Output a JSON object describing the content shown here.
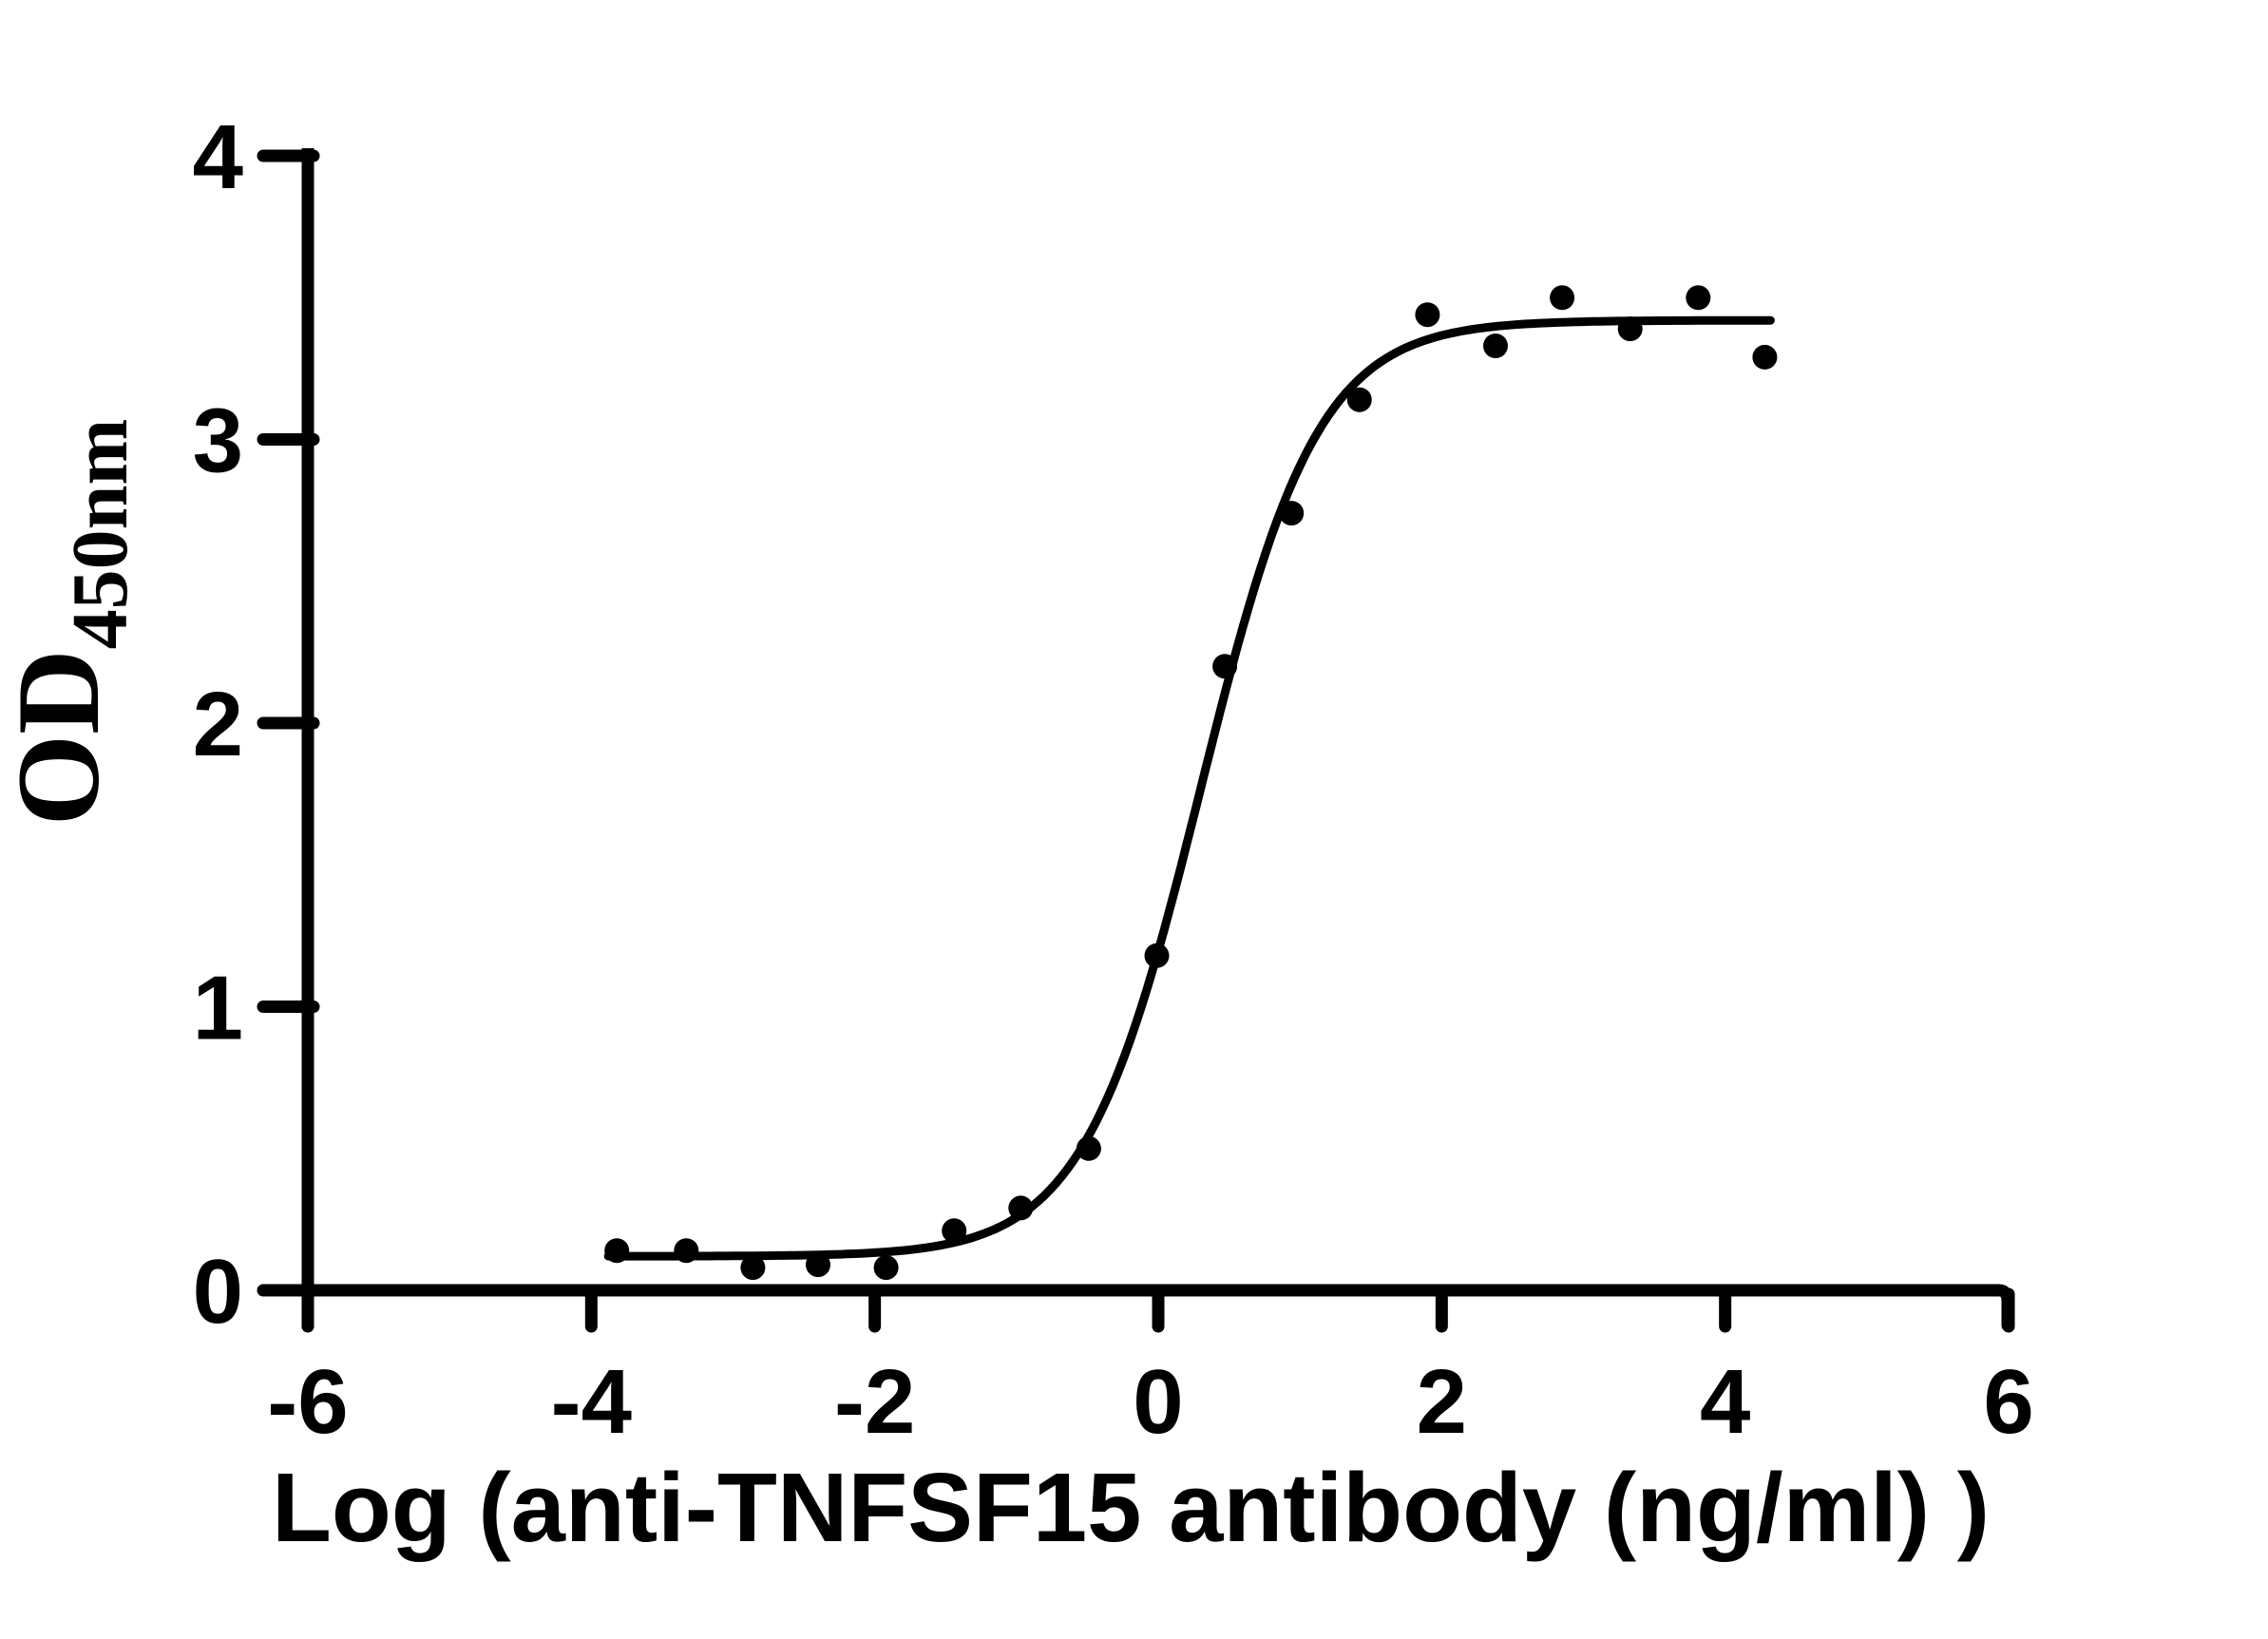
{
  "figure": {
    "background_color": "#ffffff",
    "ink_color": "#000000"
  },
  "chart_data": {
    "type": "scatter",
    "title": "",
    "xlabel": "Log（anti-TNFSF15 antibody（ng/ml） ）",
    "ylabel_base": "OD",
    "ylabel_subscript": "450nm",
    "xlim": [
      -6,
      6
    ],
    "ylim": [
      0,
      4
    ],
    "grid": false,
    "legend": "none",
    "x_tick_labels": [
      "-6",
      "-4",
      "-2",
      "0",
      "2",
      "4",
      "6"
    ],
    "x_tick_values": [
      -6,
      -4,
      -2,
      0,
      2,
      4,
      6
    ],
    "y_tick_labels": [
      "0",
      "1",
      "2",
      "3",
      "4"
    ],
    "y_tick_values": [
      0,
      1,
      2,
      3,
      4
    ],
    "marker": {
      "shape": "filled-circle",
      "color": "#000000",
      "radius_px": 13
    },
    "points": [
      {
        "x": -3.82,
        "y": 0.14
      },
      {
        "x": -3.33,
        "y": 0.14
      },
      {
        "x": -2.86,
        "y": 0.08
      },
      {
        "x": -2.4,
        "y": 0.09
      },
      {
        "x": -1.92,
        "y": 0.08
      },
      {
        "x": -1.44,
        "y": 0.21
      },
      {
        "x": -0.97,
        "y": 0.29
      },
      {
        "x": -0.49,
        "y": 0.5
      },
      {
        "x": -0.01,
        "y": 1.18
      },
      {
        "x": 0.47,
        "y": 2.2
      },
      {
        "x": 0.94,
        "y": 2.74
      },
      {
        "x": 1.42,
        "y": 3.14
      },
      {
        "x": 1.9,
        "y": 3.44
      },
      {
        "x": 2.38,
        "y": 3.33
      },
      {
        "x": 2.85,
        "y": 3.5
      },
      {
        "x": 3.33,
        "y": 3.39
      },
      {
        "x": 3.81,
        "y": 3.5
      },
      {
        "x": 4.28,
        "y": 3.29
      }
    ],
    "fit_curve": {
      "model": "4PL-sigmoid",
      "bottom": 0.12,
      "top": 3.42,
      "log_ec50": 0.3,
      "hill": 1.05,
      "x_start": -3.88,
      "x_end": 4.32
    }
  }
}
